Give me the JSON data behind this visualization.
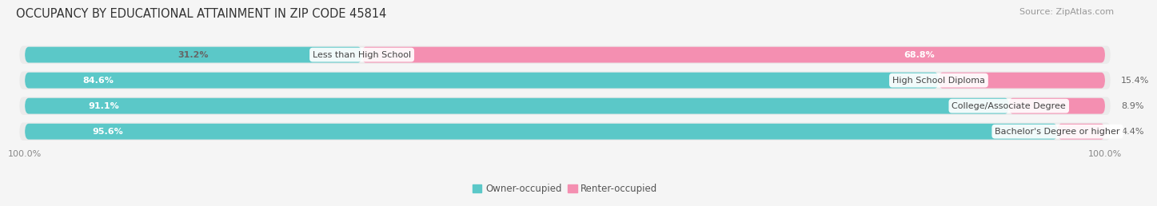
{
  "title": "OCCUPANCY BY EDUCATIONAL ATTAINMENT IN ZIP CODE 45814",
  "source": "Source: ZipAtlas.com",
  "categories": [
    "Less than High School",
    "High School Diploma",
    "College/Associate Degree",
    "Bachelor's Degree or higher"
  ],
  "owner_pct": [
    31.2,
    84.6,
    91.1,
    95.6
  ],
  "renter_pct": [
    68.8,
    15.4,
    8.9,
    4.4
  ],
  "owner_color": "#5bc8c8",
  "renter_color": "#f48fb1",
  "bg_color": "#f5f5f5",
  "bar_bg_color": "#e0e0e0",
  "row_bg_color": "#ebebeb",
  "title_fontsize": 10.5,
  "source_fontsize": 8,
  "label_fontsize": 8,
  "pct_fontsize": 8,
  "legend_fontsize": 8.5,
  "axis_label_fontsize": 8
}
